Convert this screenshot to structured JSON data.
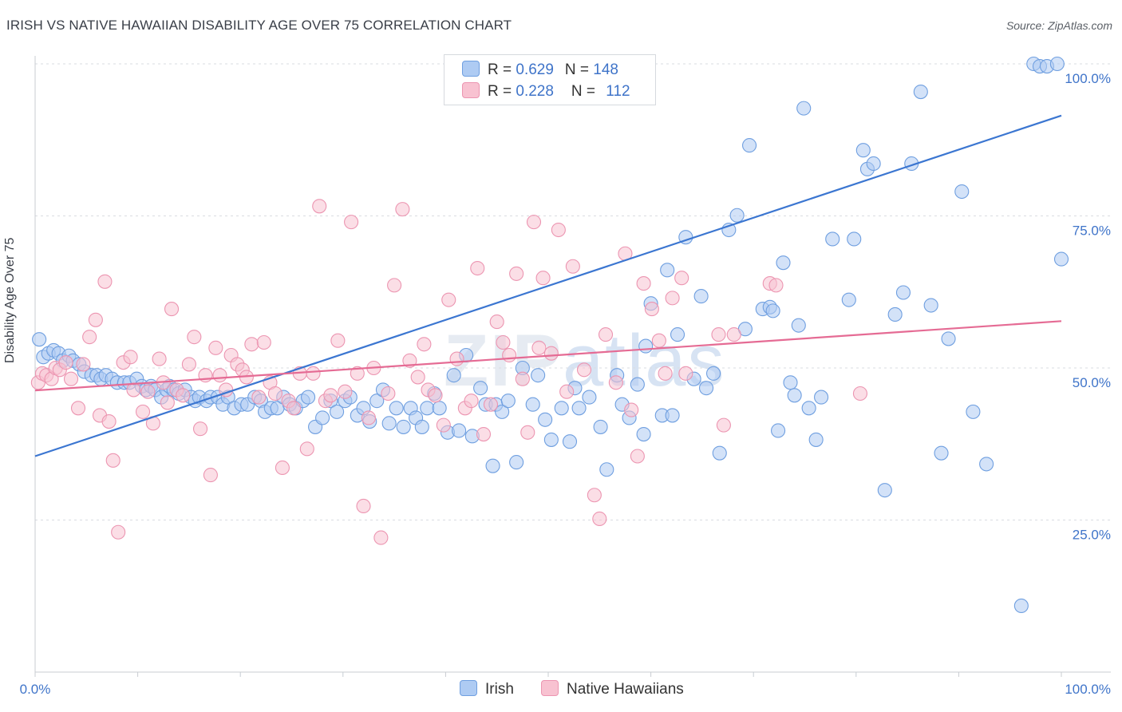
{
  "title": "IRISH VS NATIVE HAWAIIAN DISABILITY AGE OVER 75 CORRELATION CHART",
  "source": "Source: ZipAtlas.com",
  "watermark": {
    "bold": "ZIP",
    "light": "atlas"
  },
  "legend": {
    "irish": {
      "r_label": "R = ",
      "r_value": "0.629",
      "n_label": "N = ",
      "n_value": "148"
    },
    "hawaiian": {
      "r_label": "R = ",
      "r_value": "0.228",
      "n_label": "N = ",
      "n_value": "112"
    }
  },
  "colors": {
    "irish_fill": "#aecbf3",
    "irish_stroke": "#6f9fe0",
    "irish_line": "#3b76d1",
    "hawaiian_fill": "#f8c2d1",
    "hawaiian_stroke": "#ec95b1",
    "hawaiian_line": "#e56b94",
    "tick_label": "#3f74c9",
    "grid": "#d9dce1"
  },
  "chart_data": {
    "type": "scatter",
    "title": "IRISH VS NATIVE HAWAIIAN DISABILITY AGE OVER 75 CORRELATION CHART",
    "xlabel": "",
    "ylabel": "Disability Age Over 75",
    "xlim": [
      0,
      100
    ],
    "ylim": [
      0,
      102
    ],
    "x_tick_labels": [
      "0.0%",
      "100.0%"
    ],
    "y_tick_labels": [
      "25.0%",
      "50.0%",
      "75.0%",
      "100.0%"
    ],
    "y_ticks": [
      25,
      50,
      75,
      100
    ],
    "grid": "horizontal dashed",
    "legend_position": "top-center",
    "series": [
      {
        "name": "Irish",
        "trend": {
          "x": [
            0,
            100
          ],
          "y": [
            35.5,
            91.5
          ]
        },
        "points": [
          [
            0.4,
            54.7
          ],
          [
            0.8,
            51.8
          ],
          [
            1.3,
            52.4
          ],
          [
            1.8,
            52.9
          ],
          [
            2.3,
            52.4
          ],
          [
            2.7,
            51.2
          ],
          [
            3.3,
            52.0
          ],
          [
            3.7,
            51.2
          ],
          [
            4.3,
            50.6
          ],
          [
            4.8,
            49.4
          ],
          [
            5.5,
            48.8
          ],
          [
            6.0,
            48.8
          ],
          [
            6.4,
            48.2
          ],
          [
            6.9,
            48.8
          ],
          [
            7.5,
            48.2
          ],
          [
            8.0,
            47.6
          ],
          [
            8.7,
            47.6
          ],
          [
            9.2,
            47.6
          ],
          [
            9.9,
            48.2
          ],
          [
            10.4,
            47.0
          ],
          [
            10.8,
            46.4
          ],
          [
            11.3,
            47.0
          ],
          [
            11.7,
            46.4
          ],
          [
            12.3,
            45.2
          ],
          [
            12.8,
            46.4
          ],
          [
            13.1,
            47.0
          ],
          [
            13.5,
            46.4
          ],
          [
            14.0,
            45.8
          ],
          [
            14.6,
            46.4
          ],
          [
            15.2,
            45.2
          ],
          [
            15.6,
            44.6
          ],
          [
            16.0,
            45.2
          ],
          [
            16.7,
            44.6
          ],
          [
            17.1,
            45.2
          ],
          [
            17.8,
            45.2
          ],
          [
            18.3,
            44.0
          ],
          [
            18.8,
            45.2
          ],
          [
            19.4,
            43.4
          ],
          [
            20.1,
            44.0
          ],
          [
            20.7,
            44.0
          ],
          [
            21.4,
            45.2
          ],
          [
            22.0,
            44.6
          ],
          [
            22.4,
            42.8
          ],
          [
            23.0,
            43.4
          ],
          [
            23.6,
            43.4
          ],
          [
            24.2,
            45.2
          ],
          [
            24.8,
            44.0
          ],
          [
            25.4,
            43.4
          ],
          [
            26.1,
            44.6
          ],
          [
            26.6,
            45.2
          ],
          [
            27.3,
            40.3
          ],
          [
            28.0,
            41.8
          ],
          [
            28.8,
            44.6
          ],
          [
            29.4,
            42.8
          ],
          [
            30.2,
            44.6
          ],
          [
            30.7,
            45.2
          ],
          [
            31.4,
            42.2
          ],
          [
            32.0,
            43.4
          ],
          [
            32.6,
            41.2
          ],
          [
            33.3,
            44.6
          ],
          [
            33.9,
            46.4
          ],
          [
            34.5,
            40.9
          ],
          [
            35.2,
            43.4
          ],
          [
            35.9,
            40.3
          ],
          [
            36.6,
            43.4
          ],
          [
            37.1,
            41.8
          ],
          [
            37.7,
            40.3
          ],
          [
            38.2,
            43.4
          ],
          [
            38.9,
            45.8
          ],
          [
            39.4,
            43.4
          ],
          [
            40.2,
            39.4
          ],
          [
            40.8,
            48.8
          ],
          [
            41.3,
            39.7
          ],
          [
            42.0,
            52.1
          ],
          [
            42.6,
            38.8
          ],
          [
            43.4,
            46.7
          ],
          [
            43.9,
            44.0
          ],
          [
            44.6,
            33.9
          ],
          [
            44.9,
            44.0
          ],
          [
            45.5,
            42.8
          ],
          [
            46.1,
            44.6
          ],
          [
            46.9,
            34.5
          ],
          [
            47.5,
            50.0
          ],
          [
            48.5,
            44.0
          ],
          [
            49.0,
            48.8
          ],
          [
            49.7,
            41.5
          ],
          [
            50.3,
            38.2
          ],
          [
            51.3,
            43.4
          ],
          [
            52.1,
            37.9
          ],
          [
            52.6,
            46.7
          ],
          [
            53.0,
            43.4
          ],
          [
            54.0,
            45.2
          ],
          [
            55.1,
            40.3
          ],
          [
            55.7,
            33.3
          ],
          [
            56.7,
            48.8
          ],
          [
            57.2,
            44.0
          ],
          [
            57.9,
            41.8
          ],
          [
            58.7,
            47.3
          ],
          [
            59.3,
            39.1
          ],
          [
            59.5,
            53.6
          ],
          [
            60.0,
            60.6
          ],
          [
            61.1,
            42.2
          ],
          [
            61.6,
            66.1
          ],
          [
            62.1,
            42.2
          ],
          [
            62.6,
            55.5
          ],
          [
            63.4,
            71.5
          ],
          [
            64.2,
            48.2
          ],
          [
            64.9,
            61.8
          ],
          [
            65.4,
            46.7
          ],
          [
            66.1,
            49.1
          ],
          [
            66.7,
            36.0
          ],
          [
            67.6,
            72.7
          ],
          [
            68.4,
            75.1
          ],
          [
            69.2,
            56.4
          ],
          [
            69.6,
            86.6
          ],
          [
            70.9,
            59.7
          ],
          [
            71.6,
            60.0
          ],
          [
            71.9,
            59.4
          ],
          [
            72.4,
            39.7
          ],
          [
            72.9,
            67.3
          ],
          [
            73.6,
            47.6
          ],
          [
            74.0,
            45.5
          ],
          [
            74.4,
            57.0
          ],
          [
            74.9,
            92.7
          ],
          [
            75.4,
            43.4
          ],
          [
            76.1,
            38.2
          ],
          [
            76.6,
            45.2
          ],
          [
            77.7,
            71.2
          ],
          [
            79.3,
            61.2
          ],
          [
            79.8,
            71.2
          ],
          [
            80.7,
            85.8
          ],
          [
            81.1,
            82.7
          ],
          [
            81.7,
            83.6
          ],
          [
            82.8,
            29.9
          ],
          [
            83.8,
            58.8
          ],
          [
            84.6,
            62.4
          ],
          [
            85.4,
            83.6
          ],
          [
            86.3,
            95.4
          ],
          [
            87.3,
            60.3
          ],
          [
            88.3,
            36.0
          ],
          [
            89.0,
            54.8
          ],
          [
            90.3,
            79.0
          ],
          [
            91.4,
            42.8
          ],
          [
            92.7,
            34.2
          ],
          [
            96.1,
            10.9
          ],
          [
            97.3,
            100.0
          ],
          [
            97.9,
            99.6
          ],
          [
            98.6,
            99.6
          ],
          [
            99.6,
            100.0
          ],
          [
            100.0,
            67.9
          ]
        ]
      },
      {
        "name": "Native Hawaiians",
        "trend": {
          "x": [
            0,
            100
          ],
          "y": [
            46.3,
            57.7
          ]
        },
        "points": [
          [
            0.3,
            47.6
          ],
          [
            0.7,
            49.1
          ],
          [
            1.1,
            48.8
          ],
          [
            1.6,
            48.2
          ],
          [
            2.0,
            50.0
          ],
          [
            2.4,
            49.7
          ],
          [
            3.0,
            50.9
          ],
          [
            3.5,
            48.2
          ],
          [
            4.2,
            43.4
          ],
          [
            4.7,
            50.6
          ],
          [
            5.3,
            55.1
          ],
          [
            5.9,
            57.9
          ],
          [
            6.3,
            42.2
          ],
          [
            6.8,
            64.2
          ],
          [
            7.2,
            41.2
          ],
          [
            7.6,
            34.8
          ],
          [
            8.1,
            23.0
          ],
          [
            8.6,
            50.9
          ],
          [
            9.3,
            51.8
          ],
          [
            9.6,
            46.4
          ],
          [
            10.5,
            42.8
          ],
          [
            11.0,
            46.1
          ],
          [
            11.5,
            40.9
          ],
          [
            12.1,
            51.5
          ],
          [
            12.5,
            47.6
          ],
          [
            12.9,
            44.3
          ],
          [
            13.3,
            59.7
          ],
          [
            13.8,
            46.4
          ],
          [
            14.4,
            45.5
          ],
          [
            15.0,
            50.6
          ],
          [
            15.5,
            55.1
          ],
          [
            16.1,
            40.0
          ],
          [
            16.6,
            48.8
          ],
          [
            17.1,
            32.4
          ],
          [
            17.6,
            53.3
          ],
          [
            18.0,
            48.8
          ],
          [
            18.6,
            46.4
          ],
          [
            19.1,
            52.1
          ],
          [
            19.7,
            50.6
          ],
          [
            20.2,
            49.7
          ],
          [
            20.6,
            48.5
          ],
          [
            21.1,
            53.9
          ],
          [
            21.8,
            45.2
          ],
          [
            22.3,
            54.2
          ],
          [
            22.9,
            47.6
          ],
          [
            23.4,
            45.8
          ],
          [
            24.1,
            33.6
          ],
          [
            24.7,
            44.6
          ],
          [
            25.2,
            43.4
          ],
          [
            25.8,
            49.1
          ],
          [
            26.5,
            36.7
          ],
          [
            27.1,
            49.1
          ],
          [
            27.7,
            76.6
          ],
          [
            28.3,
            44.6
          ],
          [
            28.8,
            45.5
          ],
          [
            29.5,
            54.5
          ],
          [
            30.2,
            46.1
          ],
          [
            30.8,
            74.0
          ],
          [
            31.4,
            49.1
          ],
          [
            32.0,
            27.3
          ],
          [
            32.5,
            41.8
          ],
          [
            33.0,
            50.0
          ],
          [
            33.7,
            22.1
          ],
          [
            34.4,
            45.8
          ],
          [
            35.0,
            63.6
          ],
          [
            35.8,
            76.1
          ],
          [
            36.5,
            51.2
          ],
          [
            37.3,
            48.5
          ],
          [
            37.9,
            53.9
          ],
          [
            38.3,
            46.4
          ],
          [
            39.0,
            45.5
          ],
          [
            39.8,
            40.6
          ],
          [
            40.3,
            61.2
          ],
          [
            41.1,
            51.5
          ],
          [
            41.9,
            43.4
          ],
          [
            42.5,
            44.6
          ],
          [
            43.1,
            66.4
          ],
          [
            43.7,
            39.1
          ],
          [
            44.4,
            44.0
          ],
          [
            45.0,
            57.6
          ],
          [
            45.6,
            54.2
          ],
          [
            46.2,
            52.1
          ],
          [
            46.9,
            65.5
          ],
          [
            47.5,
            48.2
          ],
          [
            48.0,
            39.4
          ],
          [
            48.6,
            74.0
          ],
          [
            49.1,
            53.3
          ],
          [
            49.5,
            64.8
          ],
          [
            50.3,
            52.4
          ],
          [
            51.0,
            72.7
          ],
          [
            51.8,
            46.1
          ],
          [
            52.4,
            66.7
          ],
          [
            53.5,
            49.7
          ],
          [
            54.5,
            29.1
          ],
          [
            55.0,
            25.2
          ],
          [
            55.6,
            55.5
          ],
          [
            56.6,
            47.6
          ],
          [
            57.5,
            68.8
          ],
          [
            58.1,
            43.1
          ],
          [
            58.7,
            35.5
          ],
          [
            59.3,
            63.9
          ],
          [
            60.1,
            59.7
          ],
          [
            60.8,
            54.5
          ],
          [
            61.4,
            49.1
          ],
          [
            62.1,
            61.5
          ],
          [
            63.0,
            64.8
          ],
          [
            63.4,
            49.1
          ],
          [
            66.6,
            55.5
          ],
          [
            67.1,
            40.6
          ],
          [
            68.1,
            55.5
          ],
          [
            71.6,
            63.9
          ],
          [
            72.2,
            63.6
          ],
          [
            80.4,
            45.8
          ]
        ]
      }
    ]
  }
}
